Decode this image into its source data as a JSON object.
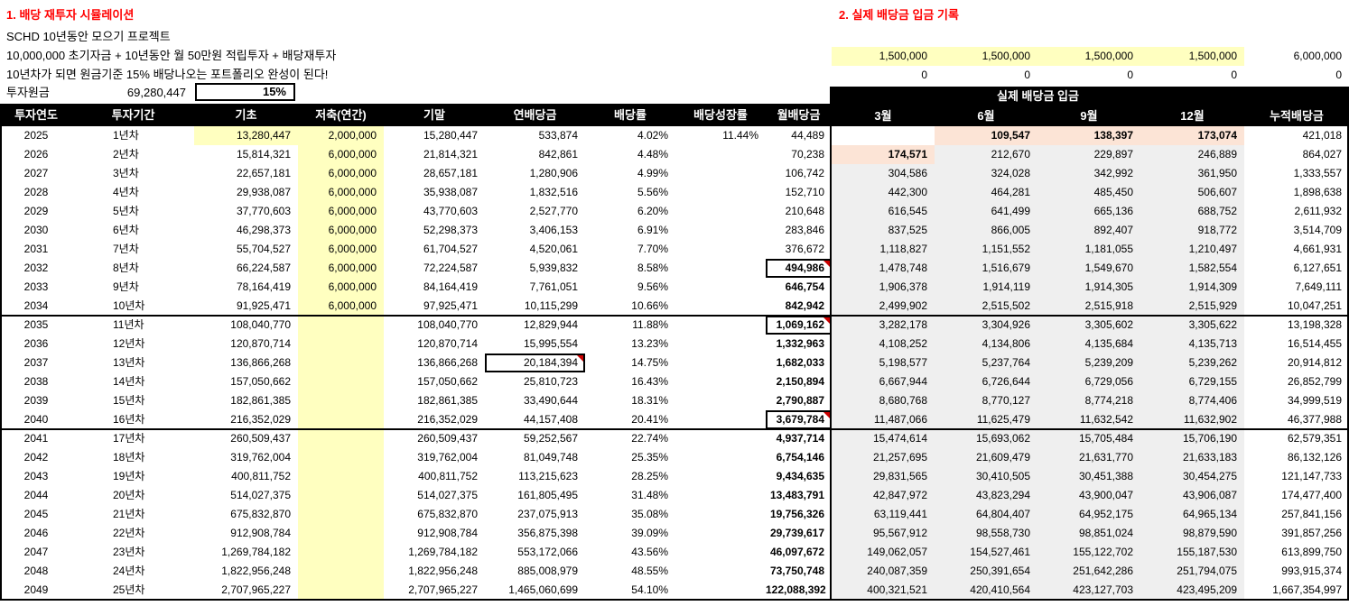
{
  "colors": {
    "accent_red": "#FF0000",
    "highlight_yellow": "#FFFFC0",
    "highlight_peach": "#FCE4D6",
    "cell_gray": "#EFEFEF",
    "header_black": "#000000"
  },
  "left_panel": {
    "title": "1. 배당 재투자 시뮬레이션",
    "subtitle_lines": [
      "SCHD 10년동안 모으기 프로젝트",
      "10,000,000 초기자금 + 10년동안 월 50만원 적립투자 + 배당재투자",
      "10년차가 되면 원금기준 15% 배당나오는 포트폴리오 완성이 된다!"
    ],
    "principal_label": "투자원금",
    "principal_value": "69,280,447",
    "target_yield": "15%"
  },
  "right_panel": {
    "title": "2. 실제 배당금 입금 기록",
    "planned_deposits": [
      "1,500,000",
      "1,500,000",
      "1,500,000",
      "1,500,000",
      "6,000,000"
    ],
    "zero_row": [
      "0",
      "0",
      "0",
      "0",
      "0"
    ],
    "band_title": "실제 배당금 입금"
  },
  "left_table": {
    "headers": [
      "투자연도",
      "투자기간",
      "기초",
      "저축(연간)",
      "기말",
      "연배당금",
      "배당률",
      "배당성장률",
      "월배당금"
    ],
    "rows": [
      [
        "2025",
        "1년차",
        "13,280,447",
        "2,000,000",
        "15,280,447",
        "533,874",
        "4.02%",
        "11.44%",
        "44,489"
      ],
      [
        "2026",
        "2년차",
        "15,814,321",
        "6,000,000",
        "21,814,321",
        "842,861",
        "4.48%",
        "",
        "70,238"
      ],
      [
        "2027",
        "3년차",
        "22,657,181",
        "6,000,000",
        "28,657,181",
        "1,280,906",
        "4.99%",
        "",
        "106,742"
      ],
      [
        "2028",
        "4년차",
        "29,938,087",
        "6,000,000",
        "35,938,087",
        "1,832,516",
        "5.56%",
        "",
        "152,710"
      ],
      [
        "2029",
        "5년차",
        "37,770,603",
        "6,000,000",
        "43,770,603",
        "2,527,770",
        "6.20%",
        "",
        "210,648"
      ],
      [
        "2030",
        "6년차",
        "46,298,373",
        "6,000,000",
        "52,298,373",
        "3,406,153",
        "6.91%",
        "",
        "283,846"
      ],
      [
        "2031",
        "7년차",
        "55,704,527",
        "6,000,000",
        "61,704,527",
        "4,520,061",
        "7.70%",
        "",
        "376,672"
      ],
      [
        "2032",
        "8년차",
        "66,224,587",
        "6,000,000",
        "72,224,587",
        "5,939,832",
        "8.58%",
        "",
        "494,986"
      ],
      [
        "2033",
        "9년차",
        "78,164,419",
        "6,000,000",
        "84,164,419",
        "7,761,051",
        "9.56%",
        "",
        "646,754"
      ],
      [
        "2034",
        "10년차",
        "91,925,471",
        "6,000,000",
        "97,925,471",
        "10,115,299",
        "10.66%",
        "",
        "842,942"
      ],
      [
        "2035",
        "11년차",
        "108,040,770",
        "",
        "108,040,770",
        "12,829,944",
        "11.88%",
        "",
        "1,069,162"
      ],
      [
        "2036",
        "12년차",
        "120,870,714",
        "",
        "120,870,714",
        "15,995,554",
        "13.23%",
        "",
        "1,332,963"
      ],
      [
        "2037",
        "13년차",
        "136,866,268",
        "",
        "136,866,268",
        "20,184,394",
        "14.75%",
        "",
        "1,682,033"
      ],
      [
        "2038",
        "14년차",
        "157,050,662",
        "",
        "157,050,662",
        "25,810,723",
        "16.43%",
        "",
        "2,150,894"
      ],
      [
        "2039",
        "15년차",
        "182,861,385",
        "",
        "182,861,385",
        "33,490,644",
        "18.31%",
        "",
        "2,790,887"
      ],
      [
        "2040",
        "16년차",
        "216,352,029",
        "",
        "216,352,029",
        "44,157,408",
        "20.41%",
        "",
        "3,679,784"
      ],
      [
        "2041",
        "17년차",
        "260,509,437",
        "",
        "260,509,437",
        "59,252,567",
        "22.74%",
        "",
        "4,937,714"
      ],
      [
        "2042",
        "18년차",
        "319,762,004",
        "",
        "319,762,004",
        "81,049,748",
        "25.35%",
        "",
        "6,754,146"
      ],
      [
        "2043",
        "19년차",
        "400,811,752",
        "",
        "400,811,752",
        "113,215,623",
        "28.25%",
        "",
        "9,434,635"
      ],
      [
        "2044",
        "20년차",
        "514,027,375",
        "",
        "514,027,375",
        "161,805,495",
        "31.48%",
        "",
        "13,483,791"
      ],
      [
        "2045",
        "21년차",
        "675,832,870",
        "",
        "675,832,870",
        "237,075,913",
        "35.08%",
        "",
        "19,756,326"
      ],
      [
        "2046",
        "22년차",
        "912,908,784",
        "",
        "912,908,784",
        "356,875,398",
        "39.09%",
        "",
        "29,739,617"
      ],
      [
        "2047",
        "23년차",
        "1,269,784,182",
        "",
        "1,269,784,182",
        "553,172,066",
        "43.56%",
        "",
        "46,097,672"
      ],
      [
        "2048",
        "24년차",
        "1,822,956,248",
        "",
        "1,822,956,248",
        "885,008,979",
        "48.55%",
        "",
        "73,750,748"
      ],
      [
        "2049",
        "25년차",
        "2,707,965,227",
        "",
        "2,707,965,227",
        "1,465,060,699",
        "54.10%",
        "",
        "122,088,392"
      ]
    ],
    "base_yellow_rows": [
      0
    ],
    "monthly_bold_from_row": 7,
    "boxed_cells": [
      [
        7,
        8
      ],
      [
        10,
        8
      ],
      [
        12,
        5
      ],
      [
        15,
        8
      ]
    ],
    "section_break_after_rows": [
      9,
      15
    ]
  },
  "right_table": {
    "band_title": "실제 배당금 입금",
    "headers": [
      "3월",
      "6월",
      "9월",
      "12월",
      "누적배당금"
    ],
    "rows": [
      [
        "",
        "109,547",
        "138,397",
        "173,074",
        "421,018"
      ],
      [
        "174,571",
        "212,670",
        "229,897",
        "246,889",
        "864,027"
      ],
      [
        "304,586",
        "324,028",
        "342,992",
        "361,950",
        "1,333,557"
      ],
      [
        "442,300",
        "464,281",
        "485,450",
        "506,607",
        "1,898,638"
      ],
      [
        "616,545",
        "641,499",
        "665,136",
        "688,752",
        "2,611,932"
      ],
      [
        "837,525",
        "866,005",
        "892,407",
        "918,772",
        "3,514,709"
      ],
      [
        "1,118,827",
        "1,151,552",
        "1,181,055",
        "1,210,497",
        "4,661,931"
      ],
      [
        "1,478,748",
        "1,516,679",
        "1,549,670",
        "1,582,554",
        "6,127,651"
      ],
      [
        "1,906,378",
        "1,914,119",
        "1,914,305",
        "1,914,309",
        "7,649,111"
      ],
      [
        "2,499,902",
        "2,515,502",
        "2,515,918",
        "2,515,929",
        "10,047,251"
      ],
      [
        "3,282,178",
        "3,304,926",
        "3,305,602",
        "3,305,622",
        "13,198,328"
      ],
      [
        "4,108,252",
        "4,134,806",
        "4,135,684",
        "4,135,713",
        "16,514,455"
      ],
      [
        "5,198,577",
        "5,237,764",
        "5,239,209",
        "5,239,262",
        "20,914,812"
      ],
      [
        "6,667,944",
        "6,726,644",
        "6,729,056",
        "6,729,155",
        "26,852,799"
      ],
      [
        "8,680,768",
        "8,770,127",
        "8,774,218",
        "8,774,406",
        "34,999,519"
      ],
      [
        "11,487,066",
        "11,625,479",
        "11,632,542",
        "11,632,902",
        "46,377,988"
      ],
      [
        "15,474,614",
        "15,693,062",
        "15,705,484",
        "15,706,190",
        "62,579,351"
      ],
      [
        "21,257,695",
        "21,609,479",
        "21,631,770",
        "21,633,183",
        "86,132,126"
      ],
      [
        "29,831,565",
        "30,410,505",
        "30,451,388",
        "30,454,275",
        "121,147,733"
      ],
      [
        "42,847,972",
        "43,823,294",
        "43,900,047",
        "43,906,087",
        "174,477,400"
      ],
      [
        "63,119,441",
        "64,804,407",
        "64,952,175",
        "64,965,134",
        "257,841,156"
      ],
      [
        "95,567,912",
        "98,558,730",
        "98,851,024",
        "98,879,590",
        "391,857,256"
      ],
      [
        "149,062,057",
        "154,527,461",
        "155,122,702",
        "155,187,530",
        "613,899,750"
      ],
      [
        "240,087,359",
        "250,391,654",
        "251,642,286",
        "251,794,075",
        "993,915,374"
      ],
      [
        "400,321,521",
        "420,410,564",
        "423,127,703",
        "423,495,209",
        "1,667,354,997"
      ]
    ],
    "peach_bold_cells": [
      [
        0,
        1
      ],
      [
        0,
        2
      ],
      [
        0,
        3
      ],
      [
        1,
        0
      ]
    ],
    "white_cells": [
      [
        0,
        0
      ]
    ]
  }
}
